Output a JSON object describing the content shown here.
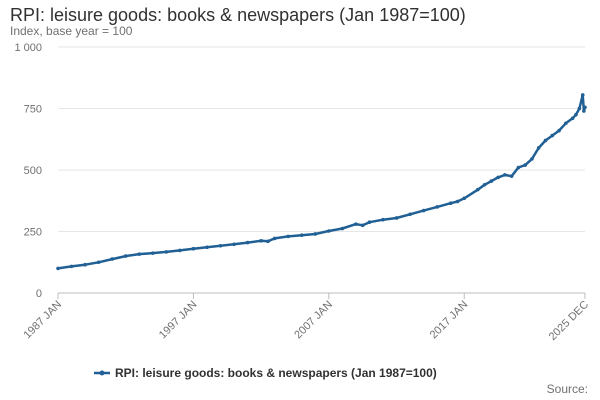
{
  "title": "RPI: leisure goods: books & newspapers (Jan 1987=100)",
  "subtitle": "Index, base year = 100",
  "source": "Source:",
  "chart_data": {
    "type": "line",
    "title": "RPI: leisure goods: books & newspapers (Jan 1987=100)",
    "ylabel": "Index, base year = 100",
    "xlabel": "",
    "ylim": [
      0,
      1000
    ],
    "xlim": [
      "1987-01",
      "2025-12"
    ],
    "y_ticks": [
      0,
      250,
      500,
      750,
      1000
    ],
    "y_tick_labels": [
      "0",
      "250",
      "500",
      "750",
      "1 000"
    ],
    "x_ticks": [
      "1987-01",
      "1997-01",
      "2007-01",
      "2017-01",
      "2025-12"
    ],
    "x_tick_labels": [
      "1987 JAN",
      "1997 JAN",
      "2007 JAN",
      "2017 JAN",
      "2025 DEC"
    ],
    "grid": true,
    "legend_position": "bottom",
    "series": [
      {
        "name": "RPI: leisure goods: books & newspapers (Jan 1987=100)",
        "color": "#206095",
        "x": [
          "1987-01",
          "1988-01",
          "1989-01",
          "1990-01",
          "1991-01",
          "1992-01",
          "1993-01",
          "1994-01",
          "1995-01",
          "1996-01",
          "1997-01",
          "1998-01",
          "1999-01",
          "2000-01",
          "2001-01",
          "2002-01",
          "2002-07",
          "2003-01",
          "2004-01",
          "2005-01",
          "2006-01",
          "2007-01",
          "2008-01",
          "2009-01",
          "2009-07",
          "2010-01",
          "2011-01",
          "2012-01",
          "2013-01",
          "2014-01",
          "2015-01",
          "2016-01",
          "2016-07",
          "2017-01",
          "2018-01",
          "2018-07",
          "2019-01",
          "2019-07",
          "2020-01",
          "2020-07",
          "2021-01",
          "2021-07",
          "2022-01",
          "2022-07",
          "2023-01",
          "2023-07",
          "2024-01",
          "2024-07",
          "2025-01",
          "2025-04",
          "2025-07",
          "2025-10",
          "2025-11",
          "2025-12"
        ],
        "values": [
          100,
          108,
          115,
          125,
          138,
          150,
          158,
          162,
          167,
          173,
          180,
          186,
          192,
          198,
          205,
          212,
          210,
          222,
          230,
          235,
          240,
          252,
          262,
          280,
          275,
          288,
          298,
          305,
          320,
          335,
          350,
          365,
          372,
          385,
          420,
          440,
          455,
          470,
          480,
          475,
          510,
          520,
          545,
          590,
          620,
          640,
          660,
          690,
          710,
          725,
          750,
          805,
          740,
          755
        ]
      }
    ]
  }
}
